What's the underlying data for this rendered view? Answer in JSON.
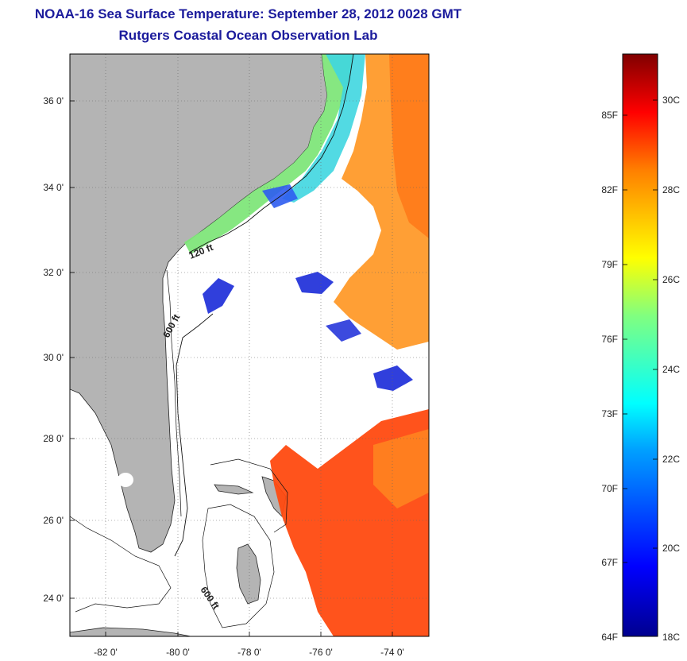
{
  "title": "NOAA-16 Sea Surface Temperature:  September 28, 2012 0028 GMT",
  "subtitle": "Rutgers Coastal Ocean Observation Lab",
  "map": {
    "lon_ticks": [
      "-82 0'",
      "-80 0'",
      "-78 0'",
      "-76 0'",
      "-74 0'"
    ],
    "lat_ticks": [
      "36 0'",
      "34 0'",
      "32 0'",
      "30 0'",
      "28 0'",
      "26 0'",
      "24 0'"
    ],
    "contour_labels": [
      "120 ft",
      "600 ft",
      "600 ft"
    ],
    "colors": {
      "land": "#b4b4b4",
      "ocean": "#ffffff",
      "border": "#000000"
    }
  },
  "colorbar": {
    "fahrenheit": [
      "85F",
      "82F",
      "79F",
      "76F",
      "73F",
      "70F",
      "67F",
      "64F"
    ],
    "celsius": [
      "30C",
      "28C",
      "26C",
      "24C",
      "22C",
      "20C",
      "18C"
    ],
    "min_c": 18,
    "max_c": 31.5
  }
}
